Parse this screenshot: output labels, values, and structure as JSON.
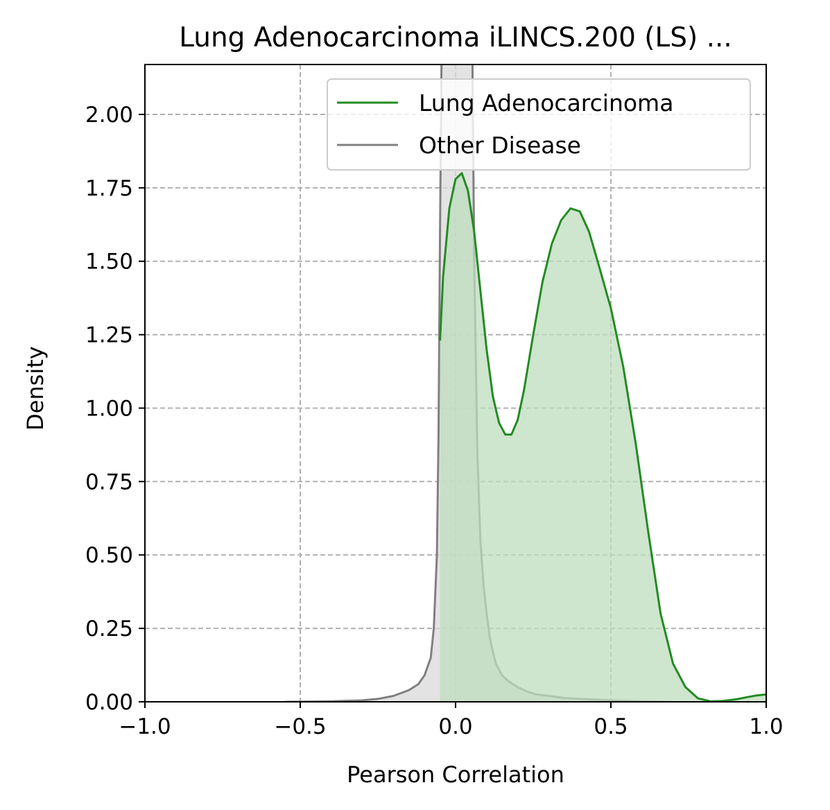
{
  "chart_data": {
    "type": "area",
    "title": "Lung Adenocarcinoma iLINCS.200 (LS) ...",
    "xlabel": "Pearson Correlation",
    "ylabel": "Density",
    "xlim": [
      -1.0,
      1.0
    ],
    "ylim": [
      0.0,
      2.17
    ],
    "x_ticks": [
      -1.0,
      -0.5,
      0.0,
      0.5,
      1.0
    ],
    "x_tick_labels": [
      "−1.0",
      "−0.5",
      "0.0",
      "0.5",
      "1.0"
    ],
    "y_ticks": [
      0.0,
      0.25,
      0.5,
      0.75,
      1.0,
      1.25,
      1.5,
      1.75,
      2.0
    ],
    "y_tick_labels": [
      "0.00",
      "0.25",
      "0.50",
      "0.75",
      "1.00",
      "1.25",
      "1.50",
      "1.75",
      "2.00"
    ],
    "grid": true,
    "legend_position": "top-right",
    "series": [
      {
        "name": "Other Disease",
        "color": "#808080",
        "fill": "#d9d9d9",
        "points": [
          [
            -0.55,
            0.0
          ],
          [
            -0.4,
            0.002
          ],
          [
            -0.3,
            0.005
          ],
          [
            -0.25,
            0.01
          ],
          [
            -0.2,
            0.02
          ],
          [
            -0.15,
            0.04
          ],
          [
            -0.12,
            0.06
          ],
          [
            -0.1,
            0.09
          ],
          [
            -0.08,
            0.15
          ],
          [
            -0.07,
            0.25
          ],
          [
            -0.06,
            0.5
          ],
          [
            -0.055,
            0.9
          ],
          [
            -0.05,
            1.6
          ],
          [
            -0.045,
            2.2
          ],
          [
            -0.04,
            3.0
          ],
          [
            0.05,
            3.0
          ],
          [
            0.055,
            2.1
          ],
          [
            0.06,
            1.5
          ],
          [
            0.07,
            0.85
          ],
          [
            0.08,
            0.55
          ],
          [
            0.09,
            0.4
          ],
          [
            0.1,
            0.3
          ],
          [
            0.11,
            0.22
          ],
          [
            0.12,
            0.17
          ],
          [
            0.13,
            0.13
          ],
          [
            0.15,
            0.09
          ],
          [
            0.17,
            0.07
          ],
          [
            0.2,
            0.05
          ],
          [
            0.23,
            0.035
          ],
          [
            0.26,
            0.025
          ],
          [
            0.3,
            0.02
          ],
          [
            0.35,
            0.013
          ],
          [
            0.4,
            0.01
          ],
          [
            0.5,
            0.005
          ],
          [
            0.6,
            0.002
          ],
          [
            0.7,
            0.0
          ]
        ]
      },
      {
        "name": "Lung Adenocarcinoma",
        "color": "#228b22",
        "fill": "#bddcbd",
        "points": [
          [
            -0.05,
            1.23
          ],
          [
            -0.04,
            1.45
          ],
          [
            -0.02,
            1.68
          ],
          [
            0.0,
            1.78
          ],
          [
            0.02,
            1.8
          ],
          [
            0.04,
            1.74
          ],
          [
            0.06,
            1.6
          ],
          [
            0.08,
            1.4
          ],
          [
            0.1,
            1.2
          ],
          [
            0.12,
            1.04
          ],
          [
            0.14,
            0.95
          ],
          [
            0.16,
            0.91
          ],
          [
            0.18,
            0.91
          ],
          [
            0.2,
            0.96
          ],
          [
            0.22,
            1.06
          ],
          [
            0.25,
            1.25
          ],
          [
            0.28,
            1.43
          ],
          [
            0.31,
            1.56
          ],
          [
            0.34,
            1.64
          ],
          [
            0.37,
            1.68
          ],
          [
            0.4,
            1.67
          ],
          [
            0.43,
            1.6
          ],
          [
            0.46,
            1.49
          ],
          [
            0.5,
            1.34
          ],
          [
            0.54,
            1.14
          ],
          [
            0.58,
            0.88
          ],
          [
            0.62,
            0.58
          ],
          [
            0.66,
            0.3
          ],
          [
            0.7,
            0.13
          ],
          [
            0.74,
            0.05
          ],
          [
            0.78,
            0.012
          ],
          [
            0.82,
            0.002
          ],
          [
            0.86,
            0.003
          ],
          [
            0.9,
            0.008
          ],
          [
            0.94,
            0.016
          ],
          [
            0.97,
            0.022
          ],
          [
            1.0,
            0.025
          ]
        ]
      }
    ]
  }
}
